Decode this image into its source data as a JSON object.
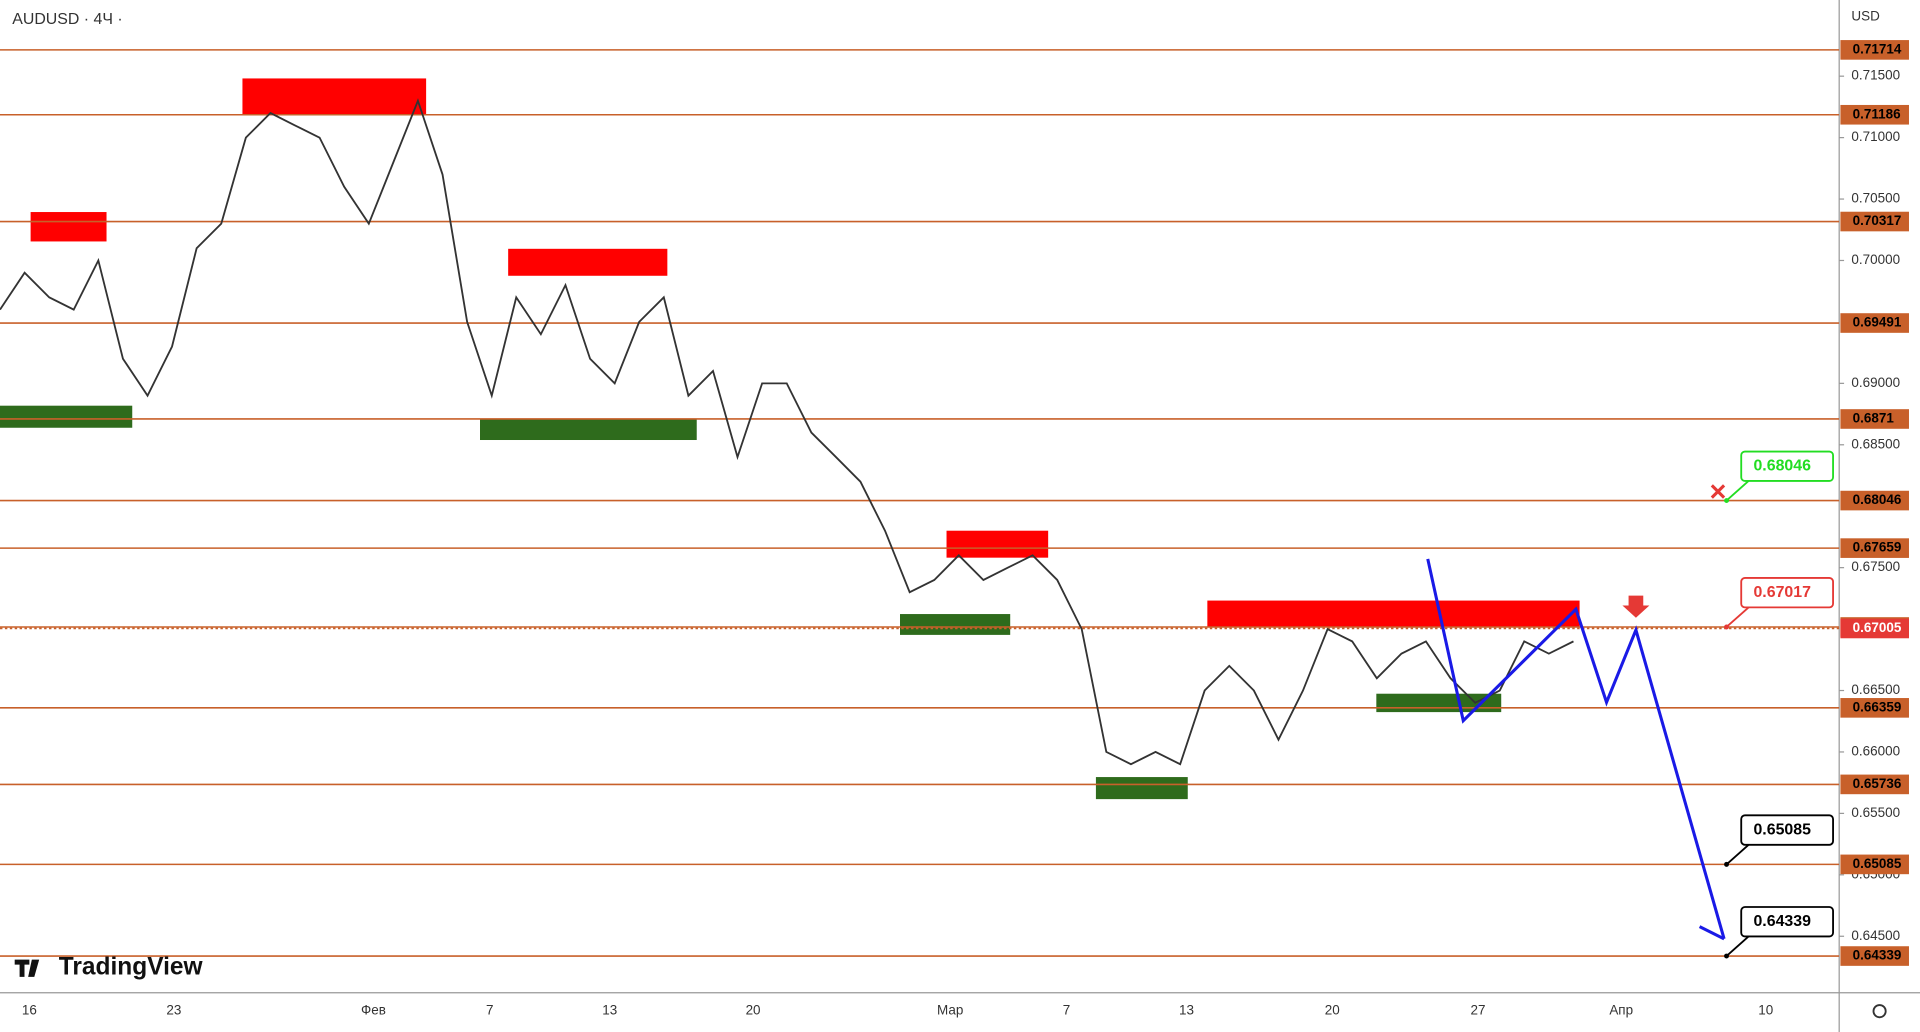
{
  "chart_data": {
    "type": "line",
    "title": "AUDUSD · 4Ч ·",
    "currency": "USD",
    "brand": "TradingView",
    "x_labels": [
      "16",
      "23",
      "Фев",
      "7",
      "13",
      "20",
      "Мар",
      "7",
      "13",
      "20",
      "27",
      "Апр",
      "10"
    ],
    "values": [
      0.696,
      0.699,
      0.697,
      0.696,
      0.7,
      0.692,
      0.689,
      0.693,
      0.701,
      0.703,
      0.71,
      0.712,
      0.711,
      0.71,
      0.706,
      0.703,
      0.708,
      0.713,
      0.707,
      0.695,
      0.689,
      0.697,
      0.694,
      0.698,
      0.692,
      0.69,
      0.695,
      0.697,
      0.689,
      0.691,
      0.684,
      0.69,
      0.69,
      0.686,
      0.684,
      0.682,
      0.678,
      0.673,
      0.674,
      0.676,
      0.674,
      0.675,
      0.676,
      0.674,
      0.67,
      0.66,
      0.659,
      0.66,
      0.659,
      0.665,
      0.667,
      0.665,
      0.661,
      0.665,
      0.67,
      0.669,
      0.666,
      0.668,
      0.669,
      0.666,
      0.664,
      0.665,
      0.669,
      0.668,
      0.669
    ],
    "color": "#333333",
    "ylim": [
      0.6404,
      0.7212
    ],
    "yticks": [
      {
        "value": 0.715,
        "label": "0.71500"
      },
      {
        "value": 0.71,
        "label": "0.71000"
      },
      {
        "value": 0.705,
        "label": "0.70500"
      },
      {
        "value": 0.7,
        "label": "0.70000"
      },
      {
        "value": 0.69,
        "label": "0.69000"
      },
      {
        "value": 0.685,
        "label": "0.68500"
      },
      {
        "value": 0.675,
        "label": "0.67500"
      },
      {
        "value": 0.665,
        "label": "0.66500"
      },
      {
        "value": 0.66,
        "label": "0.66000"
      },
      {
        "value": 0.655,
        "label": "0.65500"
      },
      {
        "value": 0.65,
        "label": "0.65000"
      },
      {
        "value": 0.645,
        "label": "0.64500"
      }
    ],
    "levels": [
      0.71714,
      0.71186,
      0.70317,
      0.69491,
      0.6871,
      0.68046,
      0.67659,
      0.67017,
      0.66359,
      0.65736,
      0.65085,
      0.64339
    ],
    "level_color": "#c8602a",
    "current_price": 0.67005,
    "current_color": "#e53935",
    "callouts": [
      {
        "value": 0.68046,
        "color": "#22dd22"
      },
      {
        "value": 0.67017,
        "color": "#e53935"
      },
      {
        "value": 0.65085,
        "color": "#000000"
      },
      {
        "value": 0.64339,
        "color": "#000000"
      }
    ]
  }
}
